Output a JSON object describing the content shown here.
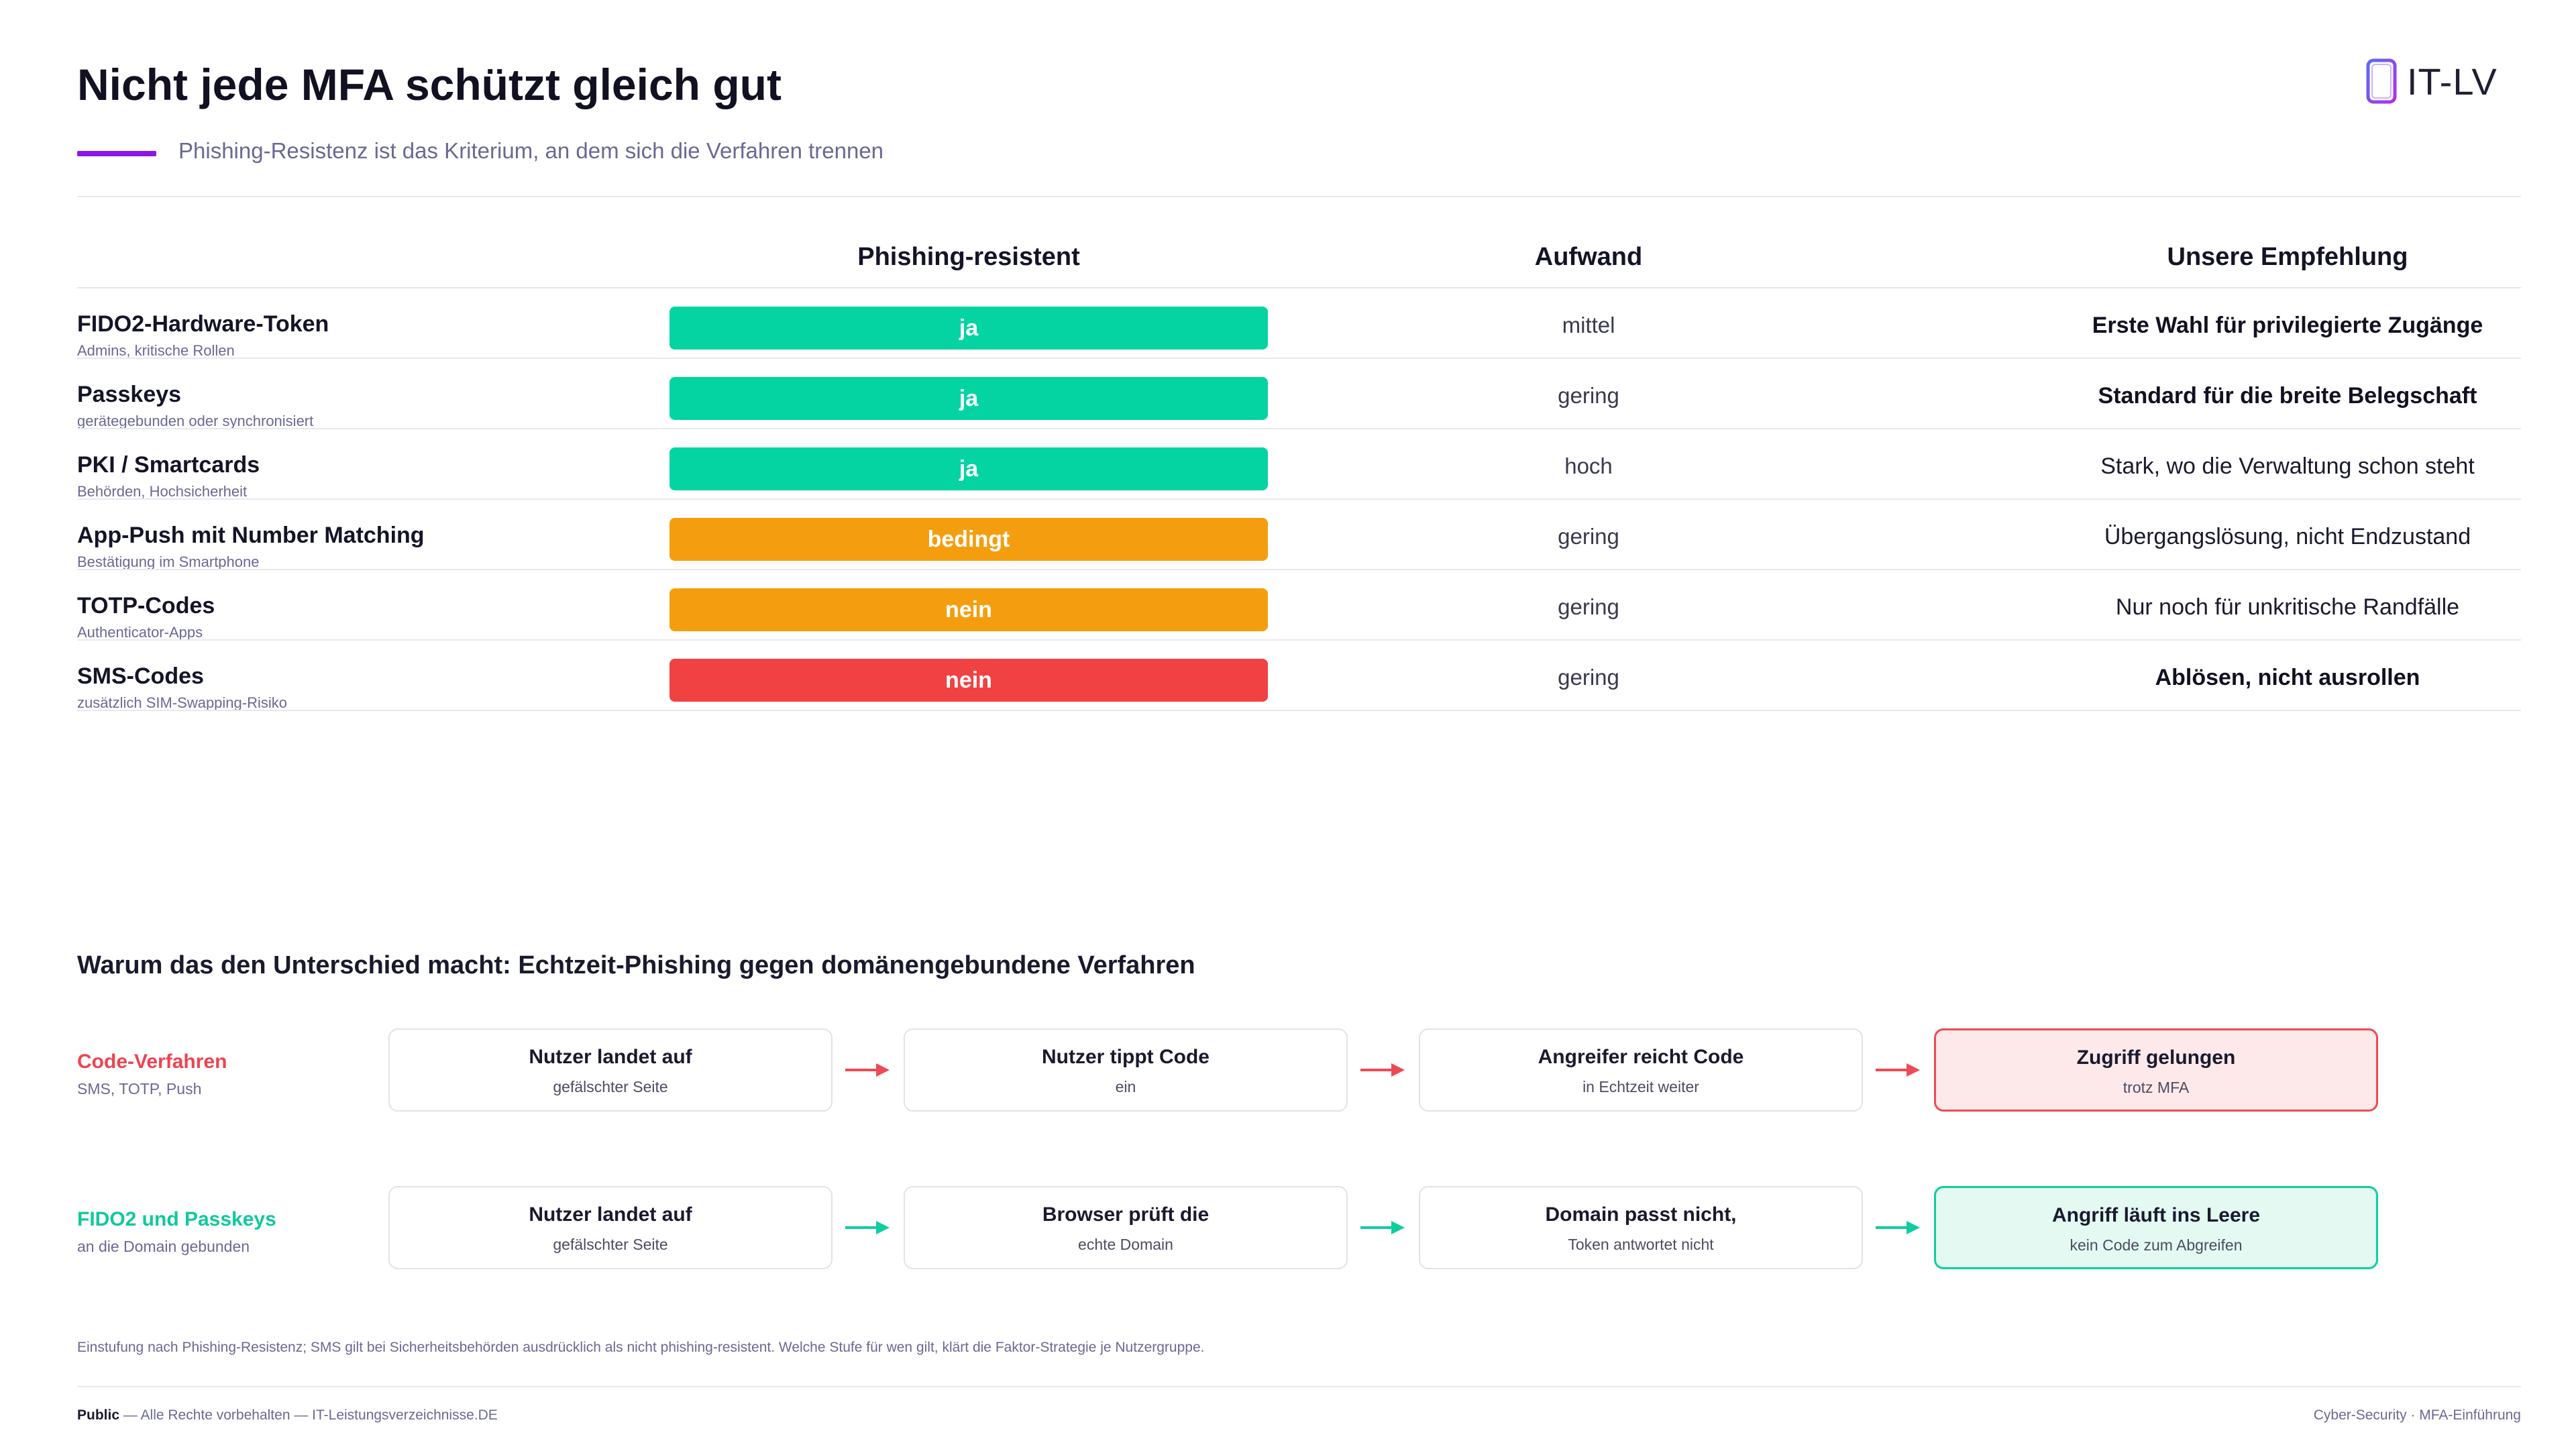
{
  "header": {
    "title": "Nicht jede MFA schützt gleich gut",
    "subtitle": "Phishing-Resistenz ist das Kriterium, an dem sich die Verfahren trennen",
    "logo_text": "IT-LV"
  },
  "table": {
    "col_phishing": "Phishing-resistent",
    "col_aufwand": "Aufwand",
    "col_empfehlung": "Unsere Empfehlung",
    "rows": [
      {
        "name": "FIDO2-Hardware-Token",
        "sub": "Admins, kritische Rollen",
        "phish": "ja",
        "aufwand": "mittel",
        "empfehlung": "Erste Wahl für privilegierte Zugänge"
      },
      {
        "name": "Passkeys",
        "sub": "gerätegebunden oder synchronisiert",
        "phish": "ja",
        "aufwand": "gering",
        "empfehlung": "Standard für die breite Belegschaft"
      },
      {
        "name": "PKI / Smartcards",
        "sub": "Behörden, Hochsicherheit",
        "phish": "ja",
        "aufwand": "hoch",
        "empfehlung": "Stark, wo die Verwaltung schon steht"
      },
      {
        "name": "App-Push mit Number Matching",
        "sub": "Bestätigung im Smartphone",
        "phish": "bedingt",
        "aufwand": "gering",
        "empfehlung": "Übergangslösung, nicht Endzustand"
      },
      {
        "name": "TOTP-Codes",
        "sub": "Authenticator-Apps",
        "phish": "nein",
        "aufwand": "gering",
        "empfehlung": "Nur noch für unkritische Randfälle"
      },
      {
        "name": "SMS-Codes",
        "sub": "zusätzlich SIM-Swapping-Risiko",
        "phish": "nein",
        "aufwand": "gering",
        "empfehlung": "Ablösen, nicht ausrollen"
      }
    ]
  },
  "why": {
    "title": "Warum das den Unterschied macht: Echtzeit-Phishing gegen domänengebundene Verfahren",
    "lane_code": {
      "label": "Code-Verfahren",
      "sub": "SMS, TOTP, Push",
      "steps": [
        {
          "title": "Nutzer landet auf",
          "sub": "gefälschter Seite"
        },
        {
          "title": "Nutzer tippt Code",
          "sub": "ein"
        },
        {
          "title": "Angreifer reicht Code",
          "sub": "in Echtzeit weiter"
        },
        {
          "title": "Zugriff gelungen",
          "sub": "trotz MFA"
        }
      ]
    },
    "lane_fido": {
      "label": "FIDO2 und Passkeys",
      "sub": "an die Domain gebunden",
      "steps": [
        {
          "title": "Nutzer landet auf",
          "sub": "gefälschter Seite"
        },
        {
          "title": "Browser prüft die",
          "sub": "echte Domain"
        },
        {
          "title": "Domain passt nicht,",
          "sub": "Token antwortet nicht"
        },
        {
          "title": "Angriff läuft ins Leere",
          "sub": "kein Code zum Abgreifen"
        }
      ]
    }
  },
  "footer": {
    "footnote": "Einstufung nach Phishing-Resistenz; SMS gilt bei Sicherheitsbehörden ausdrücklich als nicht phishing-resistent. Welche Stufe für wen gilt, klärt die Faktor-Strategie je Nutzergruppe.",
    "classification": "Public",
    "rights": " — Alle Rechte vorbehalten — IT-Leistungsverzeichnisse.DE",
    "right_text": "Cyber-Security · MFA-Einführung"
  },
  "colors": {
    "accent": "#8a17e6",
    "green": "#03d4a2",
    "orange": "#f49e0f",
    "red": "#f04243"
  }
}
